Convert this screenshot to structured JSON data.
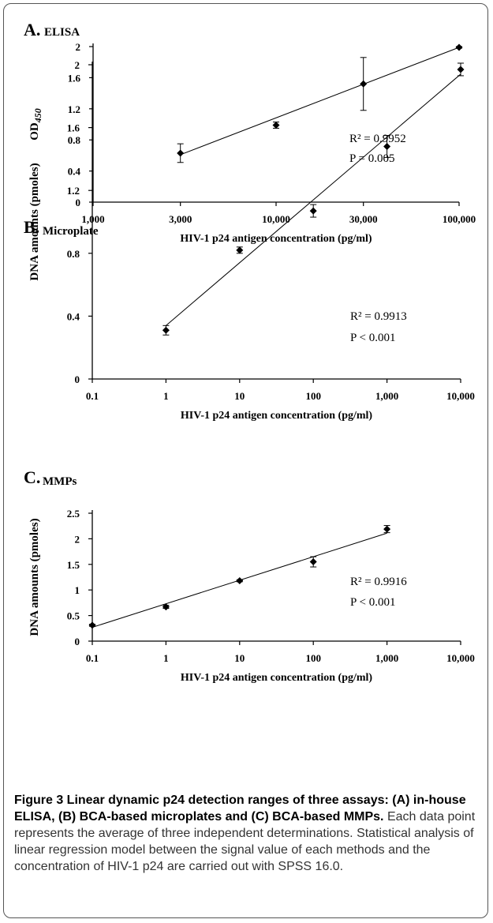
{
  "chart_data": [
    {
      "type": "scatter",
      "letter": "A.",
      "title": "ELISA",
      "xlabel": "HIV-1 p24 antigen concentration (pg/ml)",
      "ylabel": "OD",
      "ylabel_sub": "450",
      "x_scale": "log",
      "xlim": [
        1000,
        100000
      ],
      "ylim": [
        0,
        2
      ],
      "x_ticks": [
        1000,
        3000,
        10000,
        30000,
        100000
      ],
      "x_tick_labels": [
        "1,000",
        "3,000",
        "10,000",
        "30,000",
        "100,000"
      ],
      "y_ticks": [
        0,
        0.4,
        0.8,
        1.2,
        1.6,
        2
      ],
      "y_tick_labels": [
        "0",
        "0.4",
        "0.8",
        "1.2",
        "1.6",
        "2"
      ],
      "points": [
        {
          "x": 3000,
          "y": 0.63,
          "err": 0.12
        },
        {
          "x": 10000,
          "y": 0.99,
          "err": 0.04
        },
        {
          "x": 30000,
          "y": 1.52,
          "err": 0.34
        },
        {
          "x": 100000,
          "y": 1.99,
          "err": 0.01
        }
      ],
      "fit": [
        [
          3000,
          0.61
        ],
        [
          100000,
          1.99
        ]
      ],
      "r2": "R² = 0.9952",
      "p": "P = 0.005"
    },
    {
      "type": "scatter",
      "letter": "B.",
      "title": "Microplate",
      "xlabel": "HIV-1 p24 antigen concentration (pg/ml)",
      "ylabel": "DNA amounts (pmoles)",
      "ylabel_sub": "",
      "x_scale": "log",
      "xlim": [
        0.1,
        10000
      ],
      "ylim": [
        0,
        2
      ],
      "x_ticks": [
        0.1,
        1,
        10,
        100,
        1000,
        10000
      ],
      "x_tick_labels": [
        "0.1",
        "1",
        "10",
        "100",
        "1,000",
        "10,000"
      ],
      "y_ticks": [
        0,
        0.4,
        0.8,
        1.2,
        1.6,
        2
      ],
      "y_tick_labels": [
        "0",
        "0.4",
        "0.8",
        "1.2",
        "1.6",
        "2"
      ],
      "points": [
        {
          "x": 1,
          "y": 0.31,
          "err": 0.03
        },
        {
          "x": 10,
          "y": 0.82,
          "err": 0.02
        },
        {
          "x": 100,
          "y": 1.07,
          "err": 0.04
        },
        {
          "x": 1000,
          "y": 1.48,
          "err": 0.07
        },
        {
          "x": 10000,
          "y": 1.97,
          "err": 0.04
        }
      ],
      "fit": [
        [
          1,
          0.34
        ],
        [
          10000,
          1.94
        ]
      ],
      "r2": "R² = 0.9913",
      "p": "P < 0.001"
    },
    {
      "type": "scatter",
      "letter": "C.",
      "title": "MMPs",
      "xlabel": "HIV-1 p24 antigen concentration (pg/ml)",
      "ylabel": "DNA amounts (pmoles)",
      "ylabel_sub": "",
      "x_scale": "log",
      "xlim": [
        0.1,
        10000
      ],
      "ylim": [
        0,
        2.5
      ],
      "x_ticks": [
        0.1,
        1,
        10,
        100,
        1000,
        10000
      ],
      "x_tick_labels": [
        "0.1",
        "1",
        "10",
        "100",
        "1,000",
        "10,000"
      ],
      "y_ticks": [
        0,
        0.5,
        1,
        1.5,
        2,
        2.5
      ],
      "y_tick_labels": [
        "0",
        "0.5",
        "1",
        "1.5",
        "2",
        "2.5"
      ],
      "points": [
        {
          "x": 0.1,
          "y": 0.31,
          "err": 0.02
        },
        {
          "x": 1,
          "y": 0.67,
          "err": 0.03
        },
        {
          "x": 10,
          "y": 1.18,
          "err": 0.02
        },
        {
          "x": 100,
          "y": 1.55,
          "err": 0.1
        },
        {
          "x": 1000,
          "y": 2.19,
          "err": 0.07
        }
      ],
      "fit": [
        [
          0.1,
          0.27
        ],
        [
          1000,
          2.11
        ]
      ],
      "r2": "R² = 0.9916",
      "p": "P < 0.001"
    }
  ],
  "caption": {
    "bold": "Figure 3 Linear dynamic p24 detection ranges of three assays: (A) in-house ELISA, (B) BCA-based microplates and (C) BCA-based MMPs.",
    "text": " Each data point represents the average of three independent determinations. Statistical analysis of linear regression model between the signal value of each methods and the concentration of HIV-1 p24 are carried out with SPSS 16.0."
  }
}
